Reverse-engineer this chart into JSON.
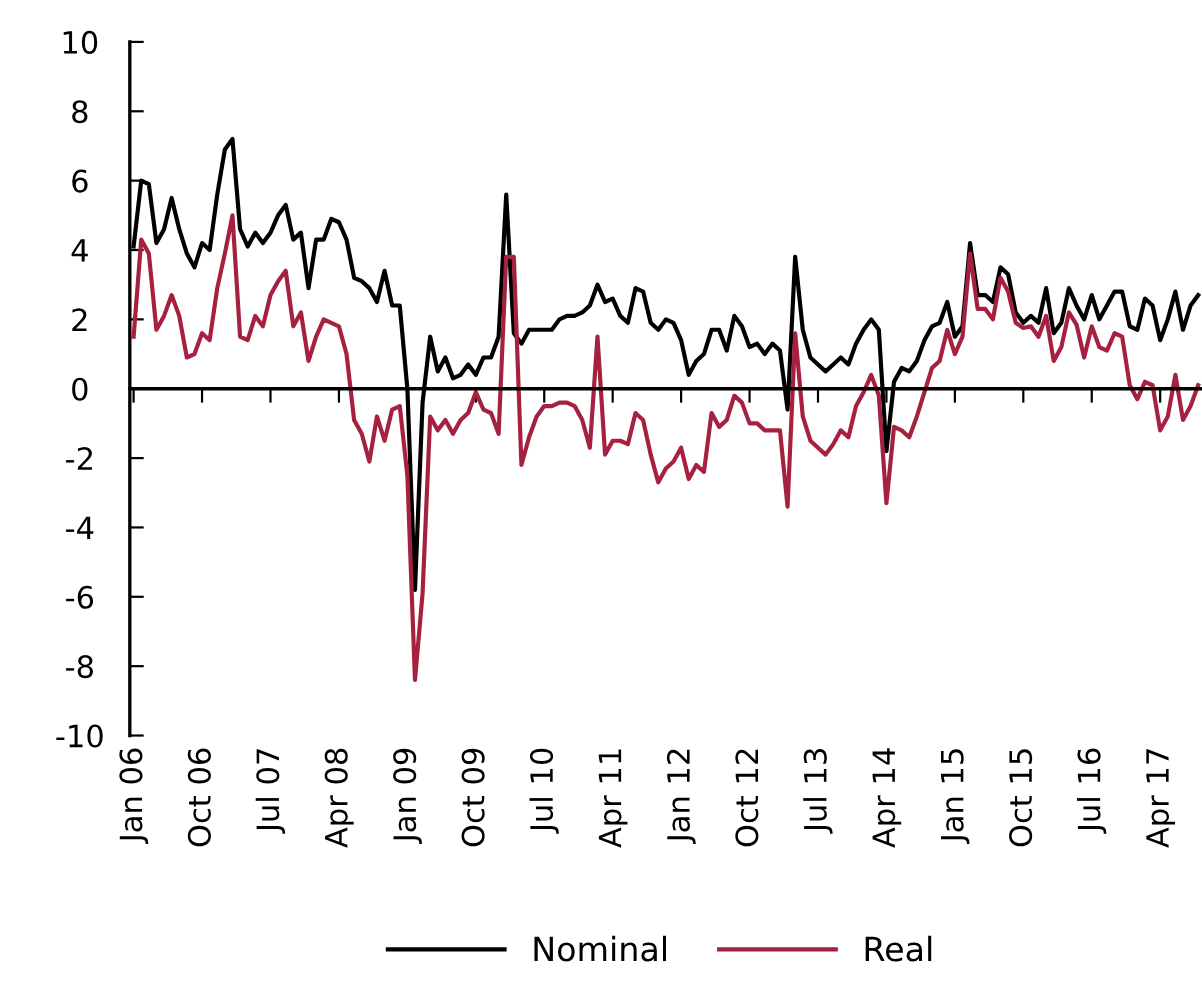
{
  "chart_data": {
    "type": "line",
    "categories": [
      "Jan 06",
      null,
      null,
      null,
      null,
      null,
      null,
      null,
      null,
      "Oct 06",
      null,
      null,
      null,
      null,
      null,
      null,
      null,
      null,
      "Jul 07",
      null,
      null,
      null,
      null,
      null,
      null,
      null,
      null,
      "Apr 08",
      null,
      null,
      null,
      null,
      null,
      null,
      null,
      null,
      "Jan 09",
      null,
      null,
      null,
      null,
      null,
      null,
      null,
      null,
      "Oct 09",
      null,
      null,
      null,
      null,
      null,
      null,
      null,
      null,
      "Jul 10",
      null,
      null,
      null,
      null,
      null,
      null,
      null,
      null,
      "Apr 11",
      null,
      null,
      null,
      null,
      null,
      null,
      null,
      null,
      "Jan 12",
      null,
      null,
      null,
      null,
      null,
      null,
      null,
      null,
      "Oct 12",
      null,
      null,
      null,
      null,
      null,
      null,
      null,
      null,
      "Jul 13",
      null,
      null,
      null,
      null,
      null,
      null,
      null,
      null,
      "Apr 14",
      null,
      null,
      null,
      null,
      null,
      null,
      null,
      null,
      "Jan 15",
      null,
      null,
      null,
      null,
      null,
      null,
      null,
      null,
      "Oct 15",
      null,
      null,
      null,
      null,
      null,
      null,
      null,
      null,
      "Jul 16",
      null,
      null,
      null,
      null,
      null,
      null,
      null,
      null,
      "Apr 17",
      null,
      null,
      null,
      null,
      null
    ],
    "series": [
      {
        "name": "Nominal",
        "color": "#000000",
        "values": [
          4.1,
          6.0,
          5.9,
          4.2,
          4.6,
          5.5,
          4.6,
          3.9,
          3.5,
          4.2,
          4.0,
          5.6,
          6.9,
          7.2,
          4.6,
          4.1,
          4.5,
          4.2,
          4.5,
          5.0,
          5.3,
          4.3,
          4.5,
          2.9,
          4.3,
          4.3,
          4.9,
          4.8,
          4.3,
          3.2,
          3.1,
          2.9,
          2.5,
          3.4,
          2.4,
          2.4,
          0.0,
          -5.8,
          -0.4,
          1.5,
          0.5,
          0.9,
          0.3,
          0.4,
          0.7,
          0.4,
          0.9,
          0.9,
          1.5,
          5.6,
          1.6,
          1.3,
          1.7,
          1.7,
          1.7,
          1.7,
          2.0,
          2.1,
          2.1,
          2.2,
          2.4,
          3.0,
          2.5,
          2.6,
          2.1,
          1.9,
          2.9,
          2.8,
          1.9,
          1.7,
          2.0,
          1.9,
          1.4,
          0.4,
          0.8,
          1.0,
          1.7,
          1.7,
          1.1,
          2.1,
          1.8,
          1.2,
          1.3,
          1.0,
          1.3,
          1.1,
          -0.6,
          3.8,
          1.7,
          0.9,
          0.7,
          0.5,
          0.7,
          0.9,
          0.7,
          1.3,
          1.7,
          2.0,
          1.7,
          -1.8,
          0.2,
          0.6,
          0.5,
          0.8,
          1.4,
          1.8,
          1.9,
          2.5,
          1.5,
          1.8,
          4.2,
          2.7,
          2.7,
          2.5,
          3.5,
          3.3,
          2.2,
          1.9,
          2.1,
          1.9,
          2.9,
          1.6,
          1.9,
          2.9,
          2.4,
          2.0,
          2.7,
          2.0,
          2.4,
          2.8,
          2.8,
          1.8,
          1.7,
          2.6,
          2.4,
          1.4,
          2.0,
          2.8,
          1.7,
          2.4,
          2.7
        ]
      },
      {
        "name": "Real",
        "color": "#a6213f",
        "values": [
          1.5,
          4.3,
          3.9,
          1.7,
          2.1,
          2.7,
          2.1,
          0.9,
          1.0,
          1.6,
          1.4,
          2.9,
          3.9,
          5.0,
          1.5,
          1.4,
          2.1,
          1.8,
          2.7,
          3.1,
          3.4,
          1.8,
          2.2,
          0.8,
          1.5,
          2.0,
          1.9,
          1.8,
          1.0,
          -0.9,
          -1.3,
          -2.1,
          -0.8,
          -1.5,
          -0.6,
          -0.5,
          -2.5,
          -8.4,
          -5.9,
          -0.8,
          -1.2,
          -0.9,
          -1.3,
          -0.9,
          -0.7,
          -0.1,
          -0.6,
          -0.7,
          -1.3,
          3.8,
          3.8,
          -2.2,
          -1.4,
          -0.8,
          -0.5,
          -0.5,
          -0.4,
          -0.4,
          -0.5,
          -0.9,
          -1.7,
          1.5,
          -1.9,
          -1.5,
          -1.5,
          -1.6,
          -0.7,
          -0.9,
          -1.9,
          -2.7,
          -2.3,
          -2.1,
          -1.7,
          -2.6,
          -2.2,
          -2.4,
          -0.7,
          -1.1,
          -0.9,
          -0.2,
          -0.4,
          -1.0,
          -1.0,
          -1.2,
          -1.2,
          -1.2,
          -3.4,
          1.6,
          -0.8,
          -1.5,
          -1.7,
          -1.9,
          -1.6,
          -1.2,
          -1.4,
          -0.5,
          -0.1,
          0.4,
          -0.2,
          -3.3,
          -1.1,
          -1.2,
          -1.4,
          -0.8,
          -0.1,
          0.6,
          0.8,
          1.7,
          1.0,
          1.5,
          3.9,
          2.3,
          2.3,
          2.0,
          3.2,
          2.8,
          1.9,
          1.75,
          1.8,
          1.5,
          2.1,
          0.8,
          1.2,
          2.2,
          1.85,
          0.9,
          1.8,
          1.2,
          1.1,
          1.6,
          1.5,
          0.1,
          -0.3,
          0.2,
          0.1,
          -1.2,
          -0.8,
          0.4,
          -0.9,
          -0.5,
          0.1
        ]
      }
    ],
    "ylim": [
      -10,
      10
    ],
    "yticks": [
      -10,
      -8,
      -6,
      -4,
      -2,
      0,
      2,
      4,
      6,
      8,
      10
    ],
    "legend": "bottom",
    "marker": "none",
    "line_style": "solid"
  }
}
